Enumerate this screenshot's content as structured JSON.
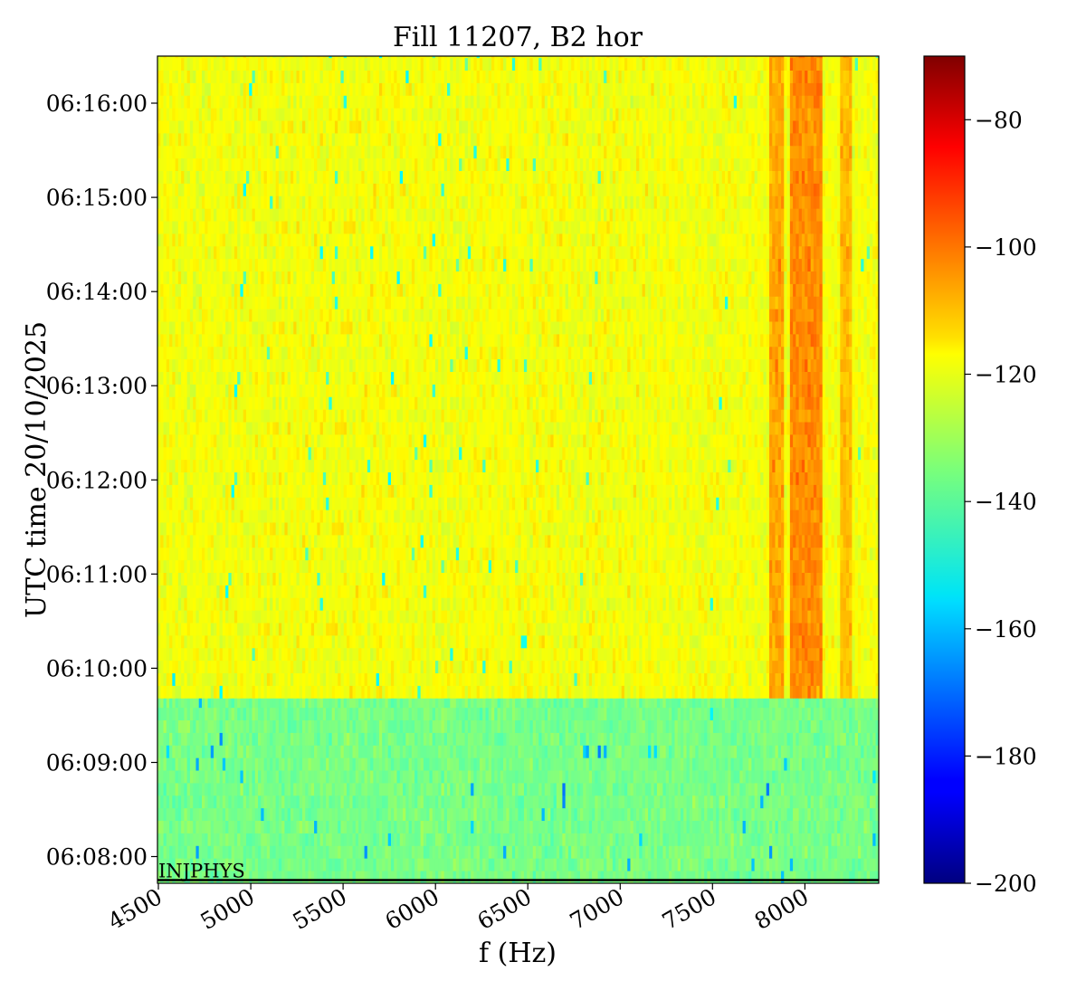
{
  "chart_data": {
    "type": "heatmap",
    "title": "Fill 11207, B2 hor",
    "xlabel": "f (Hz)",
    "ylabel": "UTC time 20/10/2025",
    "xlim": [
      4495,
      8400
    ],
    "x_ticks": [
      4500,
      5000,
      5500,
      6000,
      6500,
      7000,
      7500,
      8000
    ],
    "y_ticks": [
      "06:08:00",
      "06:09:00",
      "06:10:00",
      "06:11:00",
      "06:12:00",
      "06:13:00",
      "06:14:00",
      "06:15:00",
      "06:16:00"
    ],
    "y_range": [
      "06:07:43",
      "06:16:30"
    ],
    "colormap": "jet",
    "colorbar": {
      "range": [
        -200,
        -70
      ],
      "ticks": [
        -80,
        -100,
        -120,
        -140,
        -160,
        -180,
        -200
      ]
    },
    "regions": [
      {
        "time_from": "06:07:43",
        "time_to": "06:09:41",
        "typical_level": -136
      },
      {
        "time_from": "06:09:41",
        "time_to": "06:16:30",
        "typical_level": -120
      }
    ],
    "features": [
      {
        "freq_from": 7810,
        "freq_to": 7880,
        "level": -107,
        "time_from": "06:09:41"
      },
      {
        "freq_from": 7930,
        "freq_to": 8080,
        "level": -104,
        "time_from": "06:09:41"
      },
      {
        "freq_from": 8200,
        "freq_to": 8240,
        "level": -110,
        "time_from": "06:09:41"
      }
    ],
    "annotations": [
      {
        "text": "INJPHYS",
        "time": "06:07:45"
      }
    ]
  }
}
